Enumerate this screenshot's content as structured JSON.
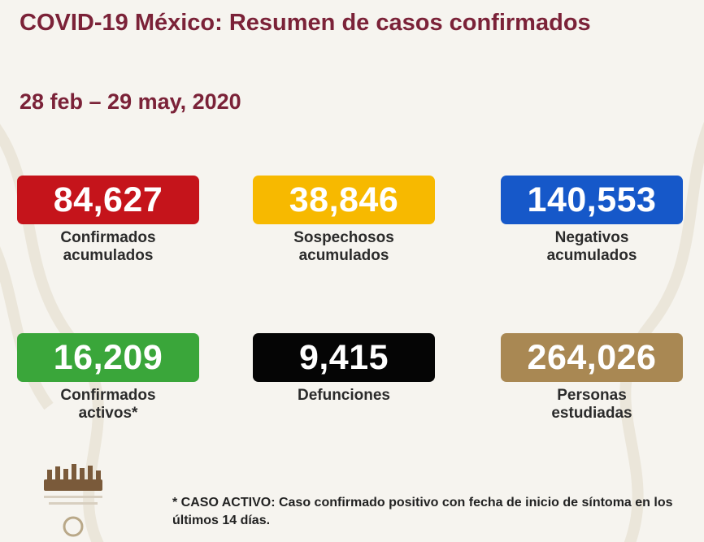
{
  "header": {
    "title": "COVID-19 México: Resumen de casos confirmados",
    "date_range": "28 feb – 29 may, 2020"
  },
  "stats": [
    {
      "value": "84,627",
      "label": "Confirmados\nacumulados",
      "color": "#c5141b"
    },
    {
      "value": "38,846",
      "label": "Sospechosos\nacumulados",
      "color": "#f7b900"
    },
    {
      "value": "140,553",
      "label": "Negativos\nacumulados",
      "color": "#1658c9"
    },
    {
      "value": "16,209",
      "label": "Confirmados\nactivos*",
      "color": "#3aa63a"
    },
    {
      "value": "9,415",
      "label": "Defunciones",
      "color": "#050505"
    },
    {
      "value": "264,026",
      "label": "Personas\nestudiadas",
      "color": "#a98853"
    }
  ],
  "footnote": "* CASO ACTIVO: Caso confirmado positivo con fecha de inicio de síntoma en los últimos 14 días.",
  "colors": {
    "title": "#7b2238",
    "background": "#f6f4ef"
  },
  "icons": {
    "logo": "government-logo-icon",
    "background": "background-pattern-icon"
  }
}
